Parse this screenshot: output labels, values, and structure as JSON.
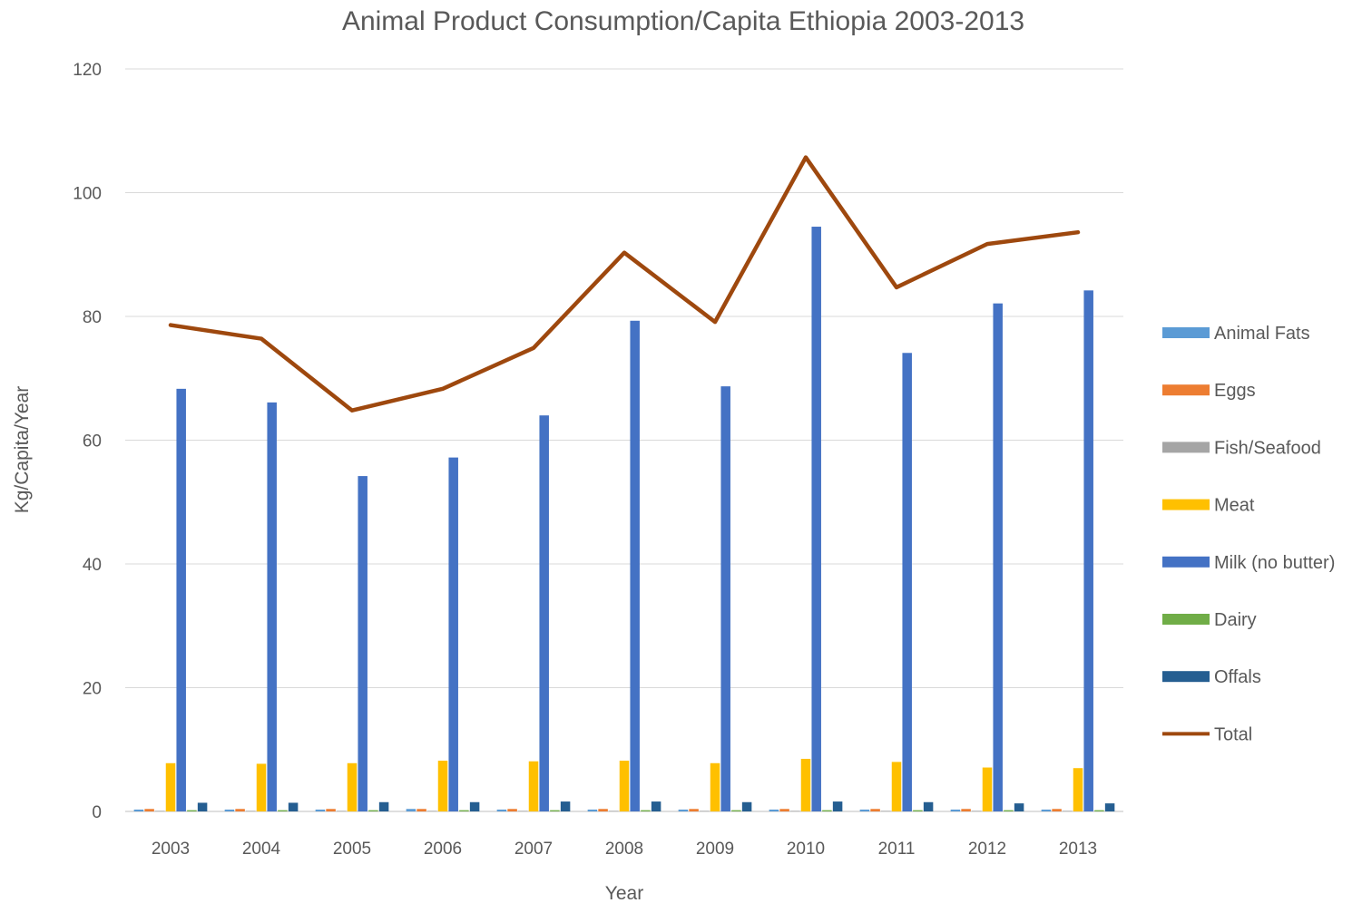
{
  "chart_data": {
    "type": "bar",
    "title": "Animal Product Consumption/Capita Ethiopia 2003-2013",
    "xlabel": "Year",
    "ylabel": "Kg/Capita/Year",
    "ylim": [
      0,
      120
    ],
    "yticks": [
      0,
      20,
      40,
      60,
      80,
      100,
      120
    ],
    "grid": true,
    "legend_position": "right",
    "categories": [
      "2003",
      "2004",
      "2005",
      "2006",
      "2007",
      "2008",
      "2009",
      "2010",
      "2011",
      "2012",
      "2013"
    ],
    "series": [
      {
        "name": "Animal Fats",
        "type": "bar",
        "color": "#5B9BD5",
        "values": [
          0.3,
          0.3,
          0.3,
          0.4,
          0.3,
          0.3,
          0.3,
          0.3,
          0.3,
          0.3,
          0.3
        ]
      },
      {
        "name": "Eggs",
        "type": "bar",
        "color": "#ED7D31",
        "values": [
          0.4,
          0.4,
          0.4,
          0.4,
          0.4,
          0.4,
          0.4,
          0.4,
          0.4,
          0.4,
          0.4
        ]
      },
      {
        "name": "Fish/Seafood",
        "type": "bar",
        "color": "#A5A5A5",
        "values": [
          0.1,
          0.1,
          0.1,
          0.1,
          0.1,
          0.1,
          0.1,
          0.1,
          0.1,
          0.1,
          0.1
        ]
      },
      {
        "name": "Meat",
        "type": "bar",
        "color": "#FFC000",
        "values": [
          7.8,
          7.7,
          7.8,
          8.2,
          8.1,
          8.2,
          7.8,
          8.5,
          8.0,
          7.1,
          7.0
        ]
      },
      {
        "name": "Milk (no butter)",
        "type": "bar",
        "color": "#4472C4",
        "values": [
          68.3,
          66.1,
          54.2,
          57.2,
          64.0,
          79.3,
          68.7,
          94.5,
          74.1,
          82.1,
          84.2
        ]
      },
      {
        "name": "Dairy",
        "type": "bar",
        "color": "#70AD47",
        "values": [
          0.2,
          0.2,
          0.2,
          0.2,
          0.2,
          0.2,
          0.2,
          0.2,
          0.2,
          0.2,
          0.2
        ]
      },
      {
        "name": "Offals",
        "type": "bar",
        "color": "#255E91",
        "values": [
          1.4,
          1.4,
          1.5,
          1.5,
          1.6,
          1.6,
          1.5,
          1.6,
          1.5,
          1.3,
          1.3
        ]
      },
      {
        "name": "Total",
        "type": "line",
        "color": "#9E480E",
        "values": [
          78.6,
          76.4,
          64.8,
          68.3,
          74.9,
          90.3,
          79.1,
          105.7,
          84.7,
          91.7,
          93.6
        ]
      }
    ]
  },
  "colors": {
    "grid": "#D9D9D9",
    "axis": "#BFBFBF",
    "text": "#595959"
  }
}
